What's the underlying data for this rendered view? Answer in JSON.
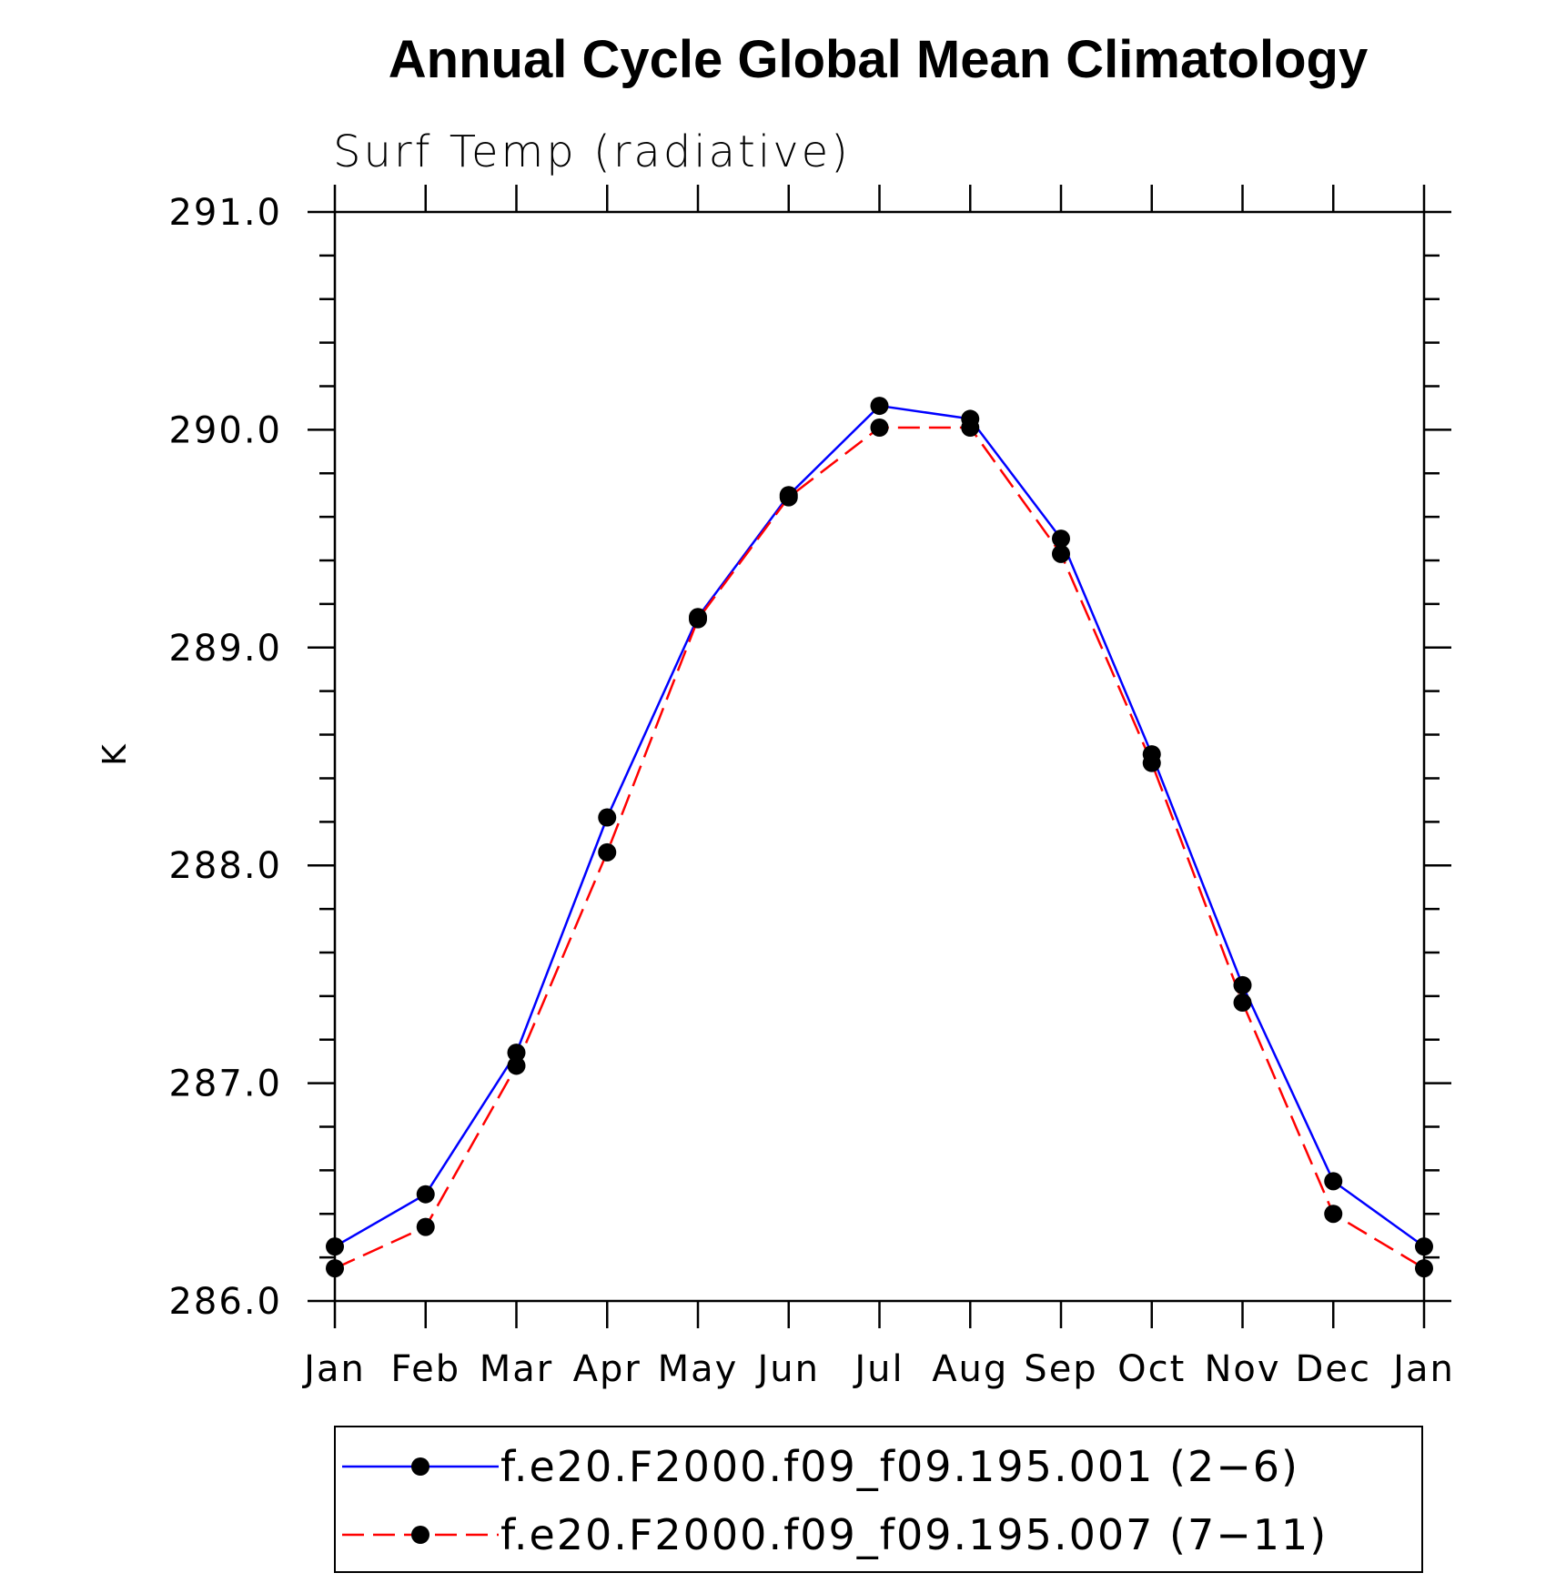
{
  "chart_data": {
    "type": "line",
    "title": "Annual Cycle Global Mean Climatology",
    "subtitle": "Surf Temp (radiative)",
    "xlabel": "",
    "ylabel": "K",
    "categories": [
      "Jan",
      "Feb",
      "Mar",
      "Apr",
      "May",
      "Jun",
      "Jul",
      "Aug",
      "Sep",
      "Oct",
      "Nov",
      "Dec",
      "Jan"
    ],
    "ylim": [
      286.0,
      291.0
    ],
    "yticks": [
      "286.0",
      "287.0",
      "288.0",
      "289.0",
      "290.0",
      "291.0"
    ],
    "y_minor_step": 0.2,
    "grid": false,
    "legend_position": "bottom",
    "series": [
      {
        "name": "f.e20.F2000.f09_f09.195.001 (2−6)",
        "color": "#0000ff",
        "dash": "solid",
        "marker": "filled-circle",
        "values": [
          286.25,
          286.49,
          287.14,
          288.22,
          289.14,
          289.7,
          290.11,
          290.05,
          289.5,
          288.51,
          287.45,
          286.55,
          286.25
        ]
      },
      {
        "name": "f.e20.F2000.f09_f09.195.007 (7−11)",
        "color": "#ff0000",
        "dash": "dashed",
        "marker": "filled-circle",
        "values": [
          286.15,
          286.34,
          287.08,
          288.06,
          289.13,
          289.69,
          290.01,
          290.01,
          289.43,
          288.47,
          287.37,
          286.4,
          286.15
        ]
      }
    ]
  }
}
